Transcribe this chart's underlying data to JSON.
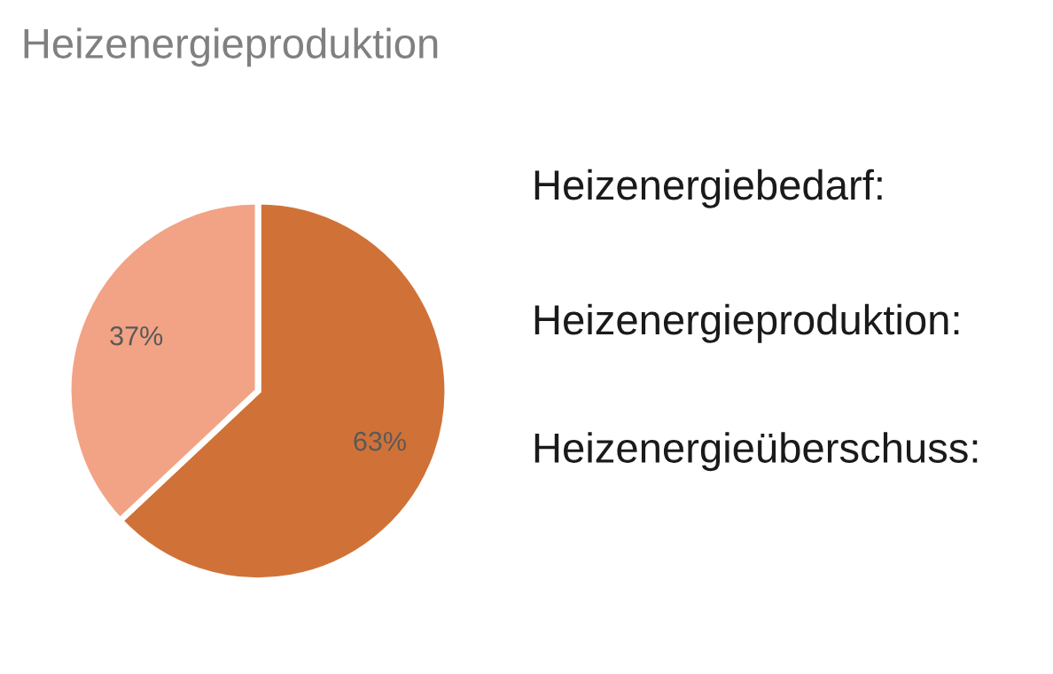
{
  "chart_data": {
    "type": "pie",
    "title": "Heizenergieproduktion",
    "categories": [
      null,
      null
    ],
    "values": [
      63,
      37
    ],
    "colors": [
      "#d07238",
      "#f2a385"
    ],
    "value_labels": [
      "63%",
      "37%"
    ],
    "annotations": [
      "Heizenergiebedarf:",
      "Heizenergieproduktion:",
      "Heizenergieüberschuss:"
    ]
  }
}
